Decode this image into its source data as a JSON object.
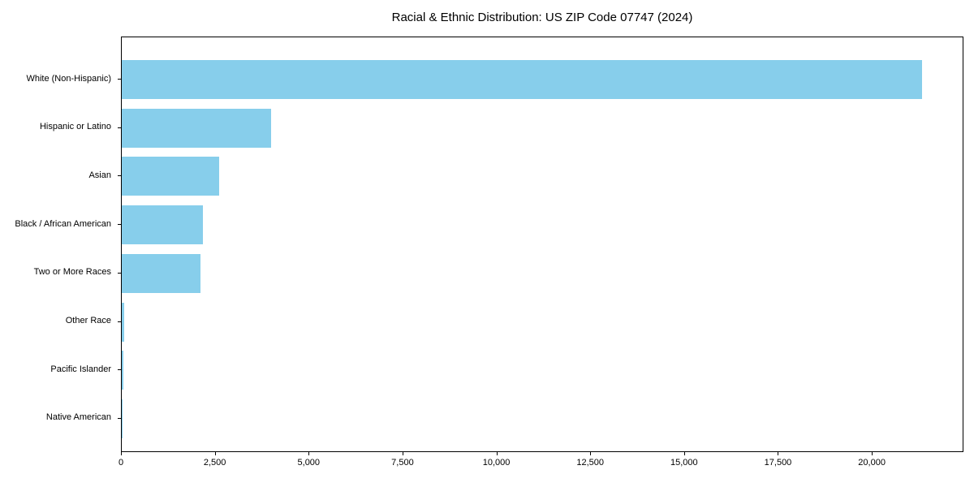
{
  "title": "Racial & Ethnic Distribution: US ZIP Code 07747 (2024)",
  "chart_data": {
    "type": "bar",
    "orientation": "horizontal",
    "title": "Racial & Ethnic Distribution: US ZIP Code 07747 (2024)",
    "xlabel": "",
    "ylabel": "",
    "categories": [
      "White (Non-Hispanic)",
      "Hispanic or Latino",
      "Asian",
      "Black / African American",
      "Two or More Races",
      "Other Race",
      "Pacific Islander",
      "Native American"
    ],
    "values": [
      21320,
      3985,
      2600,
      2170,
      2100,
      75,
      40,
      10
    ],
    "xticks": [
      0,
      2500,
      5000,
      7500,
      10000,
      12500,
      15000,
      17500,
      20000
    ],
    "xtick_labels": [
      "0",
      "2,500",
      "5,000",
      "7,500",
      "10,000",
      "12,500",
      "15,000",
      "17,500",
      "20,000"
    ],
    "xlim": [
      0,
      22440
    ],
    "bar_color": "#87CEEB",
    "grid": false,
    "legend": null
  }
}
